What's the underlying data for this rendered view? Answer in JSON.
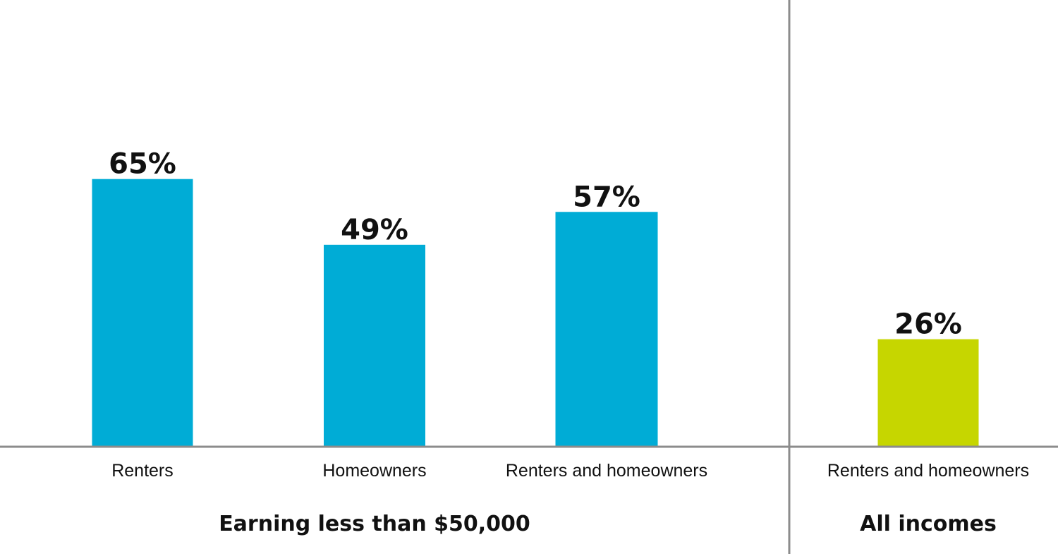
{
  "chart_data": {
    "type": "bar",
    "categories": [
      "Renters",
      "Homeowners",
      "Renters and homeowners",
      "Renters and homeowners"
    ],
    "values": [
      65,
      49,
      57,
      26
    ],
    "value_labels": [
      "65%",
      "49%",
      "57%",
      "26%"
    ],
    "groups": [
      {
        "label": "Earning less than $50,000",
        "category_indices": [
          0,
          1,
          2
        ]
      },
      {
        "label": "All incomes",
        "category_indices": [
          3
        ]
      }
    ],
    "colors": [
      "#00acd6",
      "#00acd6",
      "#00acd6",
      "#c6d600"
    ],
    "ylim": [
      0,
      100
    ],
    "grid": false,
    "legend": "none"
  }
}
